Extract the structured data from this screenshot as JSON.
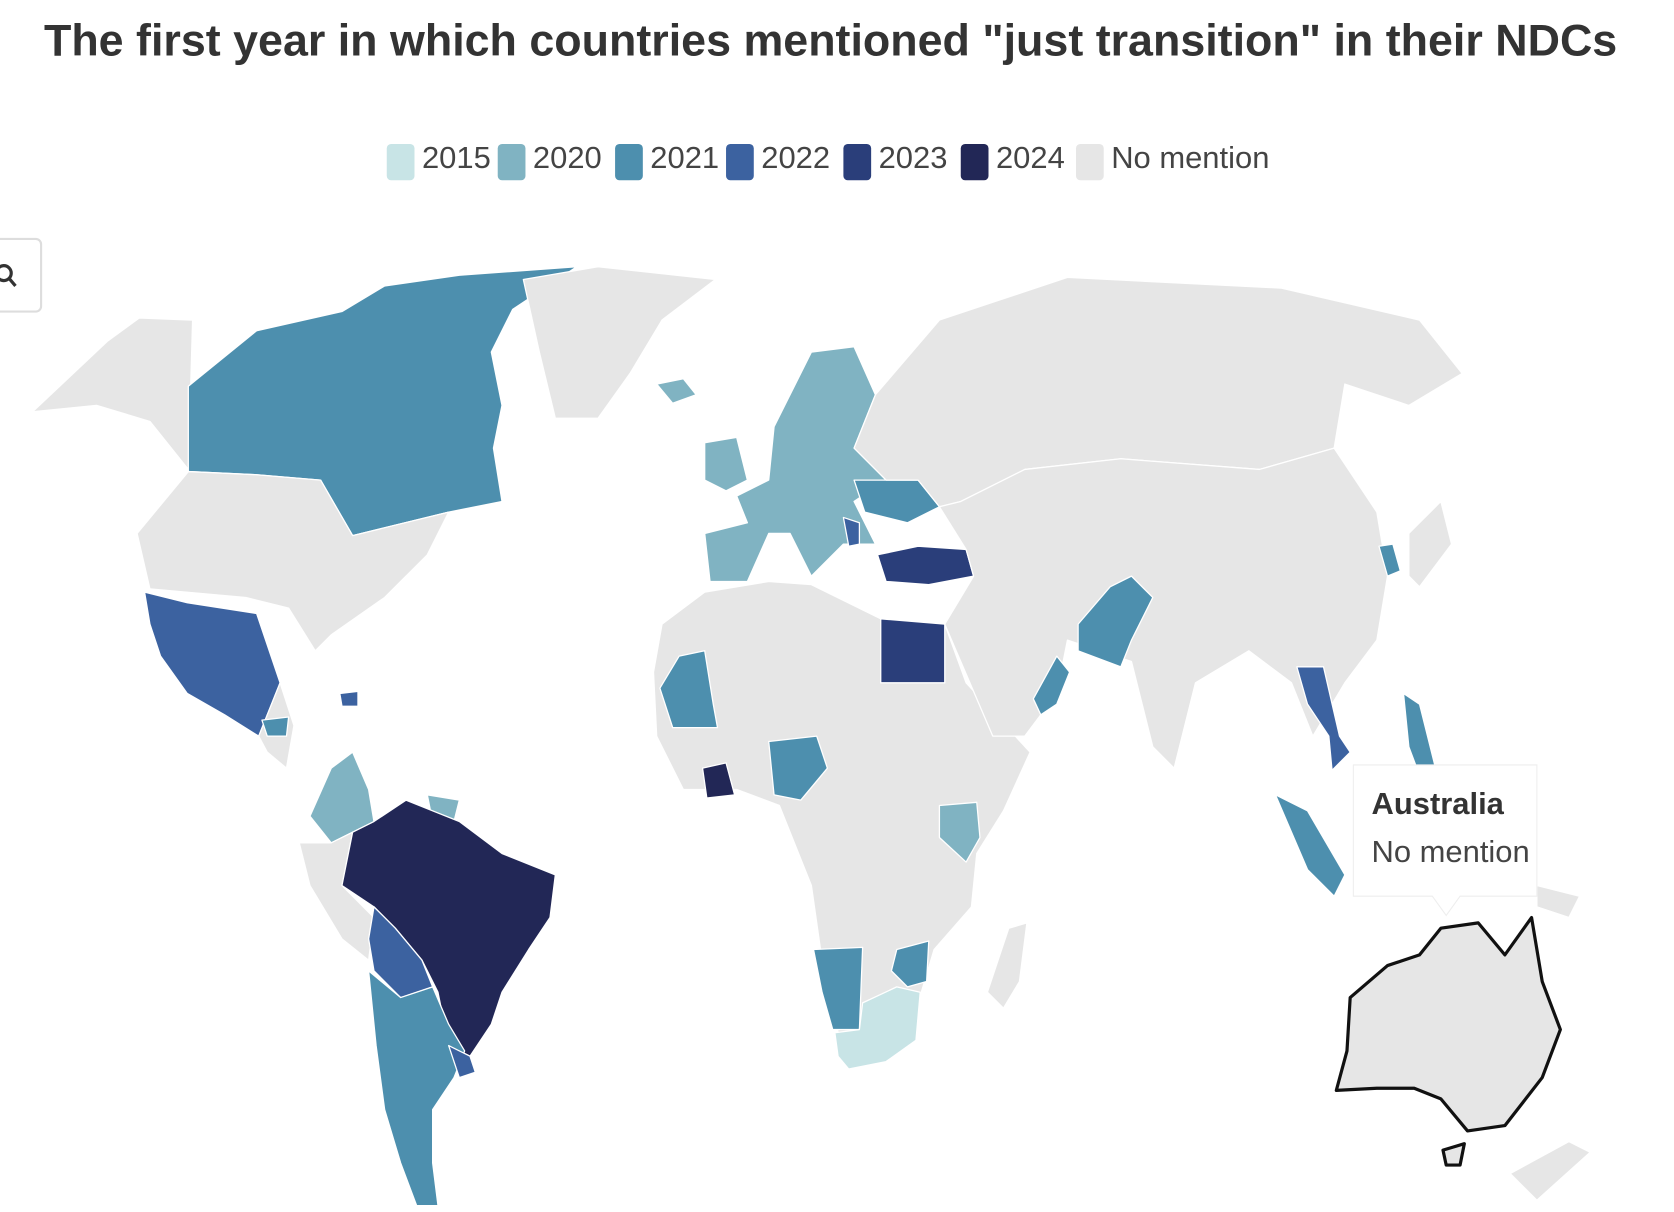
{
  "title": "The first year in which countries mentioned \"just transition\" in their NDCs",
  "legend": [
    {
      "label": "2015",
      "color": "#c8e4e6"
    },
    {
      "label": "2020",
      "color": "#80b3c2"
    },
    {
      "label": "2021",
      "color": "#4d8fae"
    },
    {
      "label": "2022",
      "color": "#3c62a0"
    },
    {
      "label": "2023",
      "color": "#2a3e7a"
    },
    {
      "label": "2024",
      "color": "#222756"
    },
    {
      "label": "No mention",
      "color": "#e6e6e6"
    }
  ],
  "tooltip": {
    "name": "Australia",
    "status": "No mention"
  }
}
